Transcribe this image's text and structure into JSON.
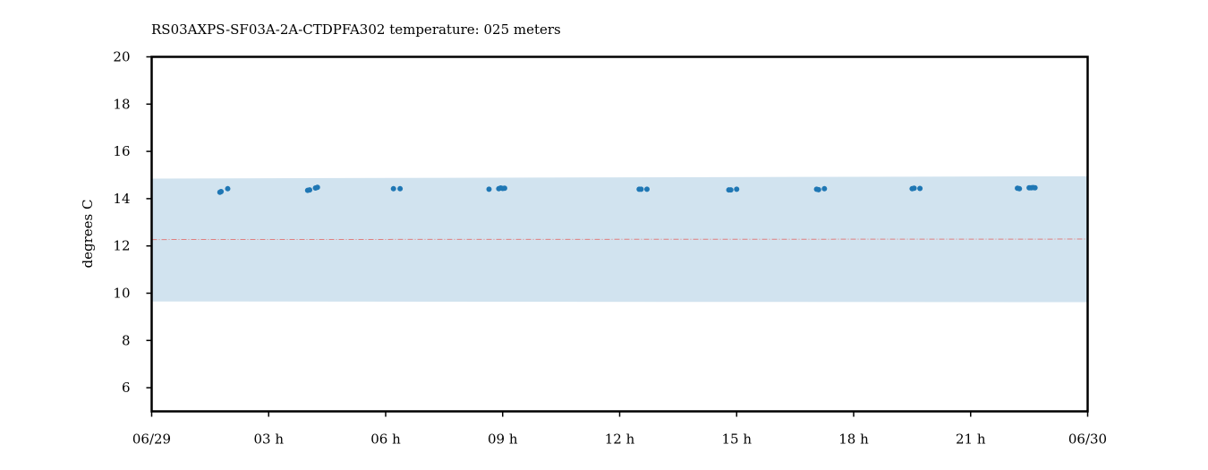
{
  "chart_data": {
    "type": "scatter",
    "title": "RS03AXPS-SF03A-2A-CTDPFA302 temperature: 025 meters",
    "xlabel": "",
    "ylabel": "degrees C",
    "x_unit": "hours",
    "xlim": [
      0,
      24
    ],
    "ylim": [
      5,
      20
    ],
    "x_ticks": [
      0,
      3,
      6,
      9,
      12,
      15,
      18,
      21,
      24
    ],
    "x_tick_labels": [
      "06/29",
      "03 h",
      "06 h",
      "09 h",
      "12 h",
      "15 h",
      "18 h",
      "21 h",
      "06/30"
    ],
    "y_ticks": [
      6,
      8,
      10,
      12,
      14,
      16,
      18,
      20
    ],
    "y_tick_labels": [
      "6",
      "8",
      "10",
      "12",
      "14",
      "16",
      "18",
      "20"
    ],
    "grid": false,
    "colors": {
      "points": "#1f77b4",
      "band": "#d1e3ef",
      "mean_line": "#e08080"
    },
    "band": {
      "x": [
        0,
        24
      ],
      "lower": [
        9.65,
        9.62
      ],
      "upper": [
        14.85,
        14.95
      ]
    },
    "mean_line": {
      "x": [
        0,
        24
      ],
      "y": [
        12.27,
        12.29
      ]
    },
    "series": [
      {
        "x": [
          1.75,
          1.78,
          1.95,
          4.0,
          4.05,
          4.2,
          4.25,
          6.2,
          6.37,
          8.65,
          8.9,
          8.95,
          9.0,
          9.05,
          12.5,
          12.55,
          12.7,
          14.8,
          14.85,
          15.0,
          17.05,
          17.1,
          17.25,
          19.5,
          19.55,
          19.7,
          22.2,
          22.25,
          22.5,
          22.55,
          22.6,
          22.65
        ],
        "y": [
          14.27,
          14.3,
          14.42,
          14.35,
          14.37,
          14.45,
          14.48,
          14.42,
          14.42,
          14.4,
          14.42,
          14.45,
          14.43,
          14.44,
          14.4,
          14.4,
          14.4,
          14.37,
          14.37,
          14.4,
          14.4,
          14.38,
          14.42,
          14.42,
          14.44,
          14.43,
          14.44,
          14.42,
          14.46,
          14.46,
          14.47,
          14.46
        ]
      }
    ]
  }
}
